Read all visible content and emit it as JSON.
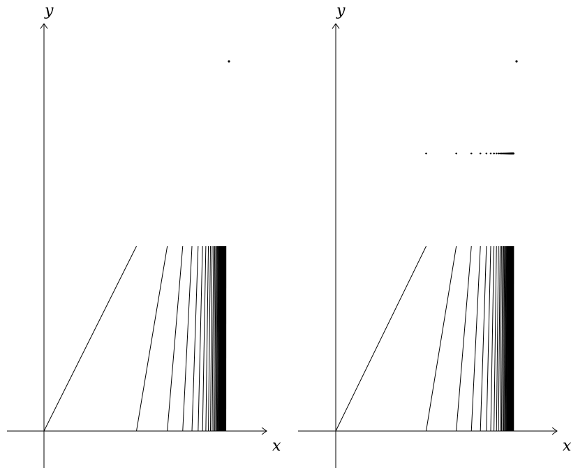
{
  "panels": [
    {
      "name": "left",
      "x_label": "x",
      "y_label": "y",
      "top_dash_row": true,
      "middle_dot_row": false
    },
    {
      "name": "right",
      "x_label": "x",
      "y_label": "y",
      "top_dash_row": true,
      "middle_dot_row": true
    }
  ]
}
